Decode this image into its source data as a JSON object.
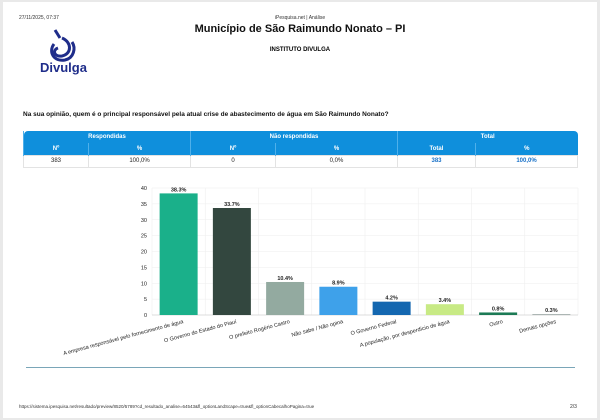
{
  "header": {
    "datetime": "27/11/2025, 07:37",
    "source": "iPesquisa.net | Análise",
    "title": "Município de São Raimundo Nonato – PI",
    "subtitle": "INSTITUTO DIVULGA",
    "logo_text": "Divulga"
  },
  "question": "Na sua opinião, quem é o principal responsável pela atual crise de abastecimento de água em São Raimundo Nonato?",
  "summary": {
    "groups": [
      "Respondidas",
      "Não respondidas",
      "Total"
    ],
    "columns": [
      "Nº",
      "%",
      "Nº",
      "%",
      "Total",
      "%"
    ],
    "values": [
      "383",
      "100,0%",
      "0",
      "0,0%",
      "383",
      "100,0%"
    ]
  },
  "chart_data": {
    "type": "bar",
    "categories": [
      "A empresa responsável pelo fornecimento de água",
      "O Governo do Estado do Piauí",
      "O prefeito Rogério Castro",
      "Não sabe / Não opina",
      "O Governo Federal",
      "A população, por desperdício de água",
      "Outro",
      "Demais opções"
    ],
    "values": [
      38.3,
      33.7,
      10.4,
      8.9,
      4.2,
      3.4,
      0.8,
      0.3
    ],
    "labels": [
      "38.3%",
      "33.7%",
      "10.4%",
      "8.9%",
      "4.2%",
      "3.4%",
      "0.8%",
      "0.3%"
    ],
    "colors": [
      "#1ab08a",
      "#33473f",
      "#93aaa0",
      "#3ea1ea",
      "#1467b0",
      "#c8ea85",
      "#1c7a55",
      "#a9b3b0"
    ],
    "ylim": [
      0,
      40
    ],
    "yticks": [
      0,
      5,
      10,
      15,
      20,
      25,
      30,
      35,
      40
    ],
    "grid": true
  },
  "footer": {
    "url": "https://sistema.ipesquisa.net/resultado/preview/8520/5789?cd_resultado_analise=64543&fl_optionLandScape=true&fl_optionCabecalhoPagina=true",
    "page": "2/3"
  }
}
